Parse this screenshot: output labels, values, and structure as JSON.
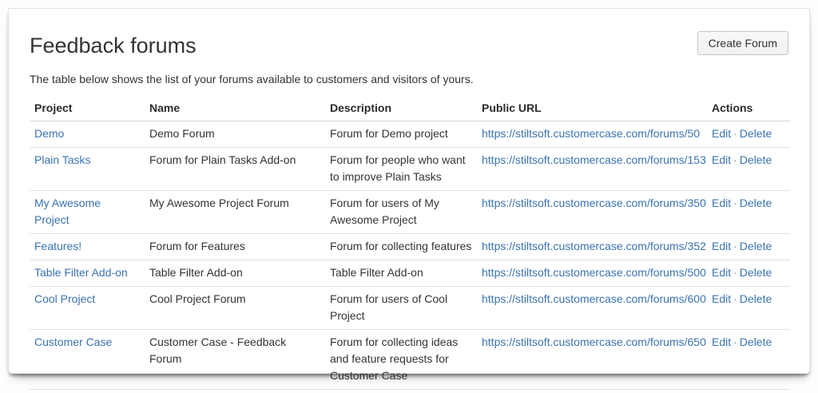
{
  "page": {
    "title": "Feedback forums",
    "subtitle": "The table below shows the list of your forums available to customers and visitors of yours.",
    "create_button_label": "Create Forum"
  },
  "table": {
    "headers": [
      "Project",
      "Name",
      "Description",
      "Public URL",
      "Actions"
    ],
    "actions": {
      "edit": "Edit",
      "separator": "·",
      "delete": "Delete"
    },
    "rows": [
      {
        "project": "Demo",
        "name": "Demo Forum",
        "description": "Forum for Demo project",
        "url": "https://stiltsoft.customercase.com/forums/50"
      },
      {
        "project": "Plain Tasks",
        "name": "Forum for Plain Tasks Add-on",
        "description": "Forum for people who want to improve Plain Tasks",
        "url": "https://stiltsoft.customercase.com/forums/153"
      },
      {
        "project": "My Awesome Project",
        "name": "My Awesome Project Forum",
        "description": "Forum for users of My Awesome Project",
        "url": "https://stiltsoft.customercase.com/forums/350"
      },
      {
        "project": "Features!",
        "name": "Forum for Features",
        "description": "Forum for collecting features",
        "url": "https://stiltsoft.customercase.com/forums/352"
      },
      {
        "project": "Table Filter Add-on",
        "name": "Table Filter Add-on",
        "description": "Table Filter Add-on",
        "url": "https://stiltsoft.customercase.com/forums/500"
      },
      {
        "project": "Cool Project",
        "name": "Cool Project Forum",
        "description": "Forum for users of Cool Project",
        "url": "https://stiltsoft.customercase.com/forums/600"
      },
      {
        "project": "Customer Case",
        "name": "Customer Case - Feedback Forum",
        "description": "Forum for collecting ideas and feature requests for Customer Case",
        "url": "https://stiltsoft.customercase.com/forums/650"
      }
    ]
  },
  "colors": {
    "link": "#3b73af",
    "text": "#333333",
    "header-text": "#2b2b2b",
    "row-border": "#e0e0e0",
    "button-border": "#c6c6c6",
    "button-bg": "#f4f4f4",
    "card-border": "#e2e2e2"
  }
}
